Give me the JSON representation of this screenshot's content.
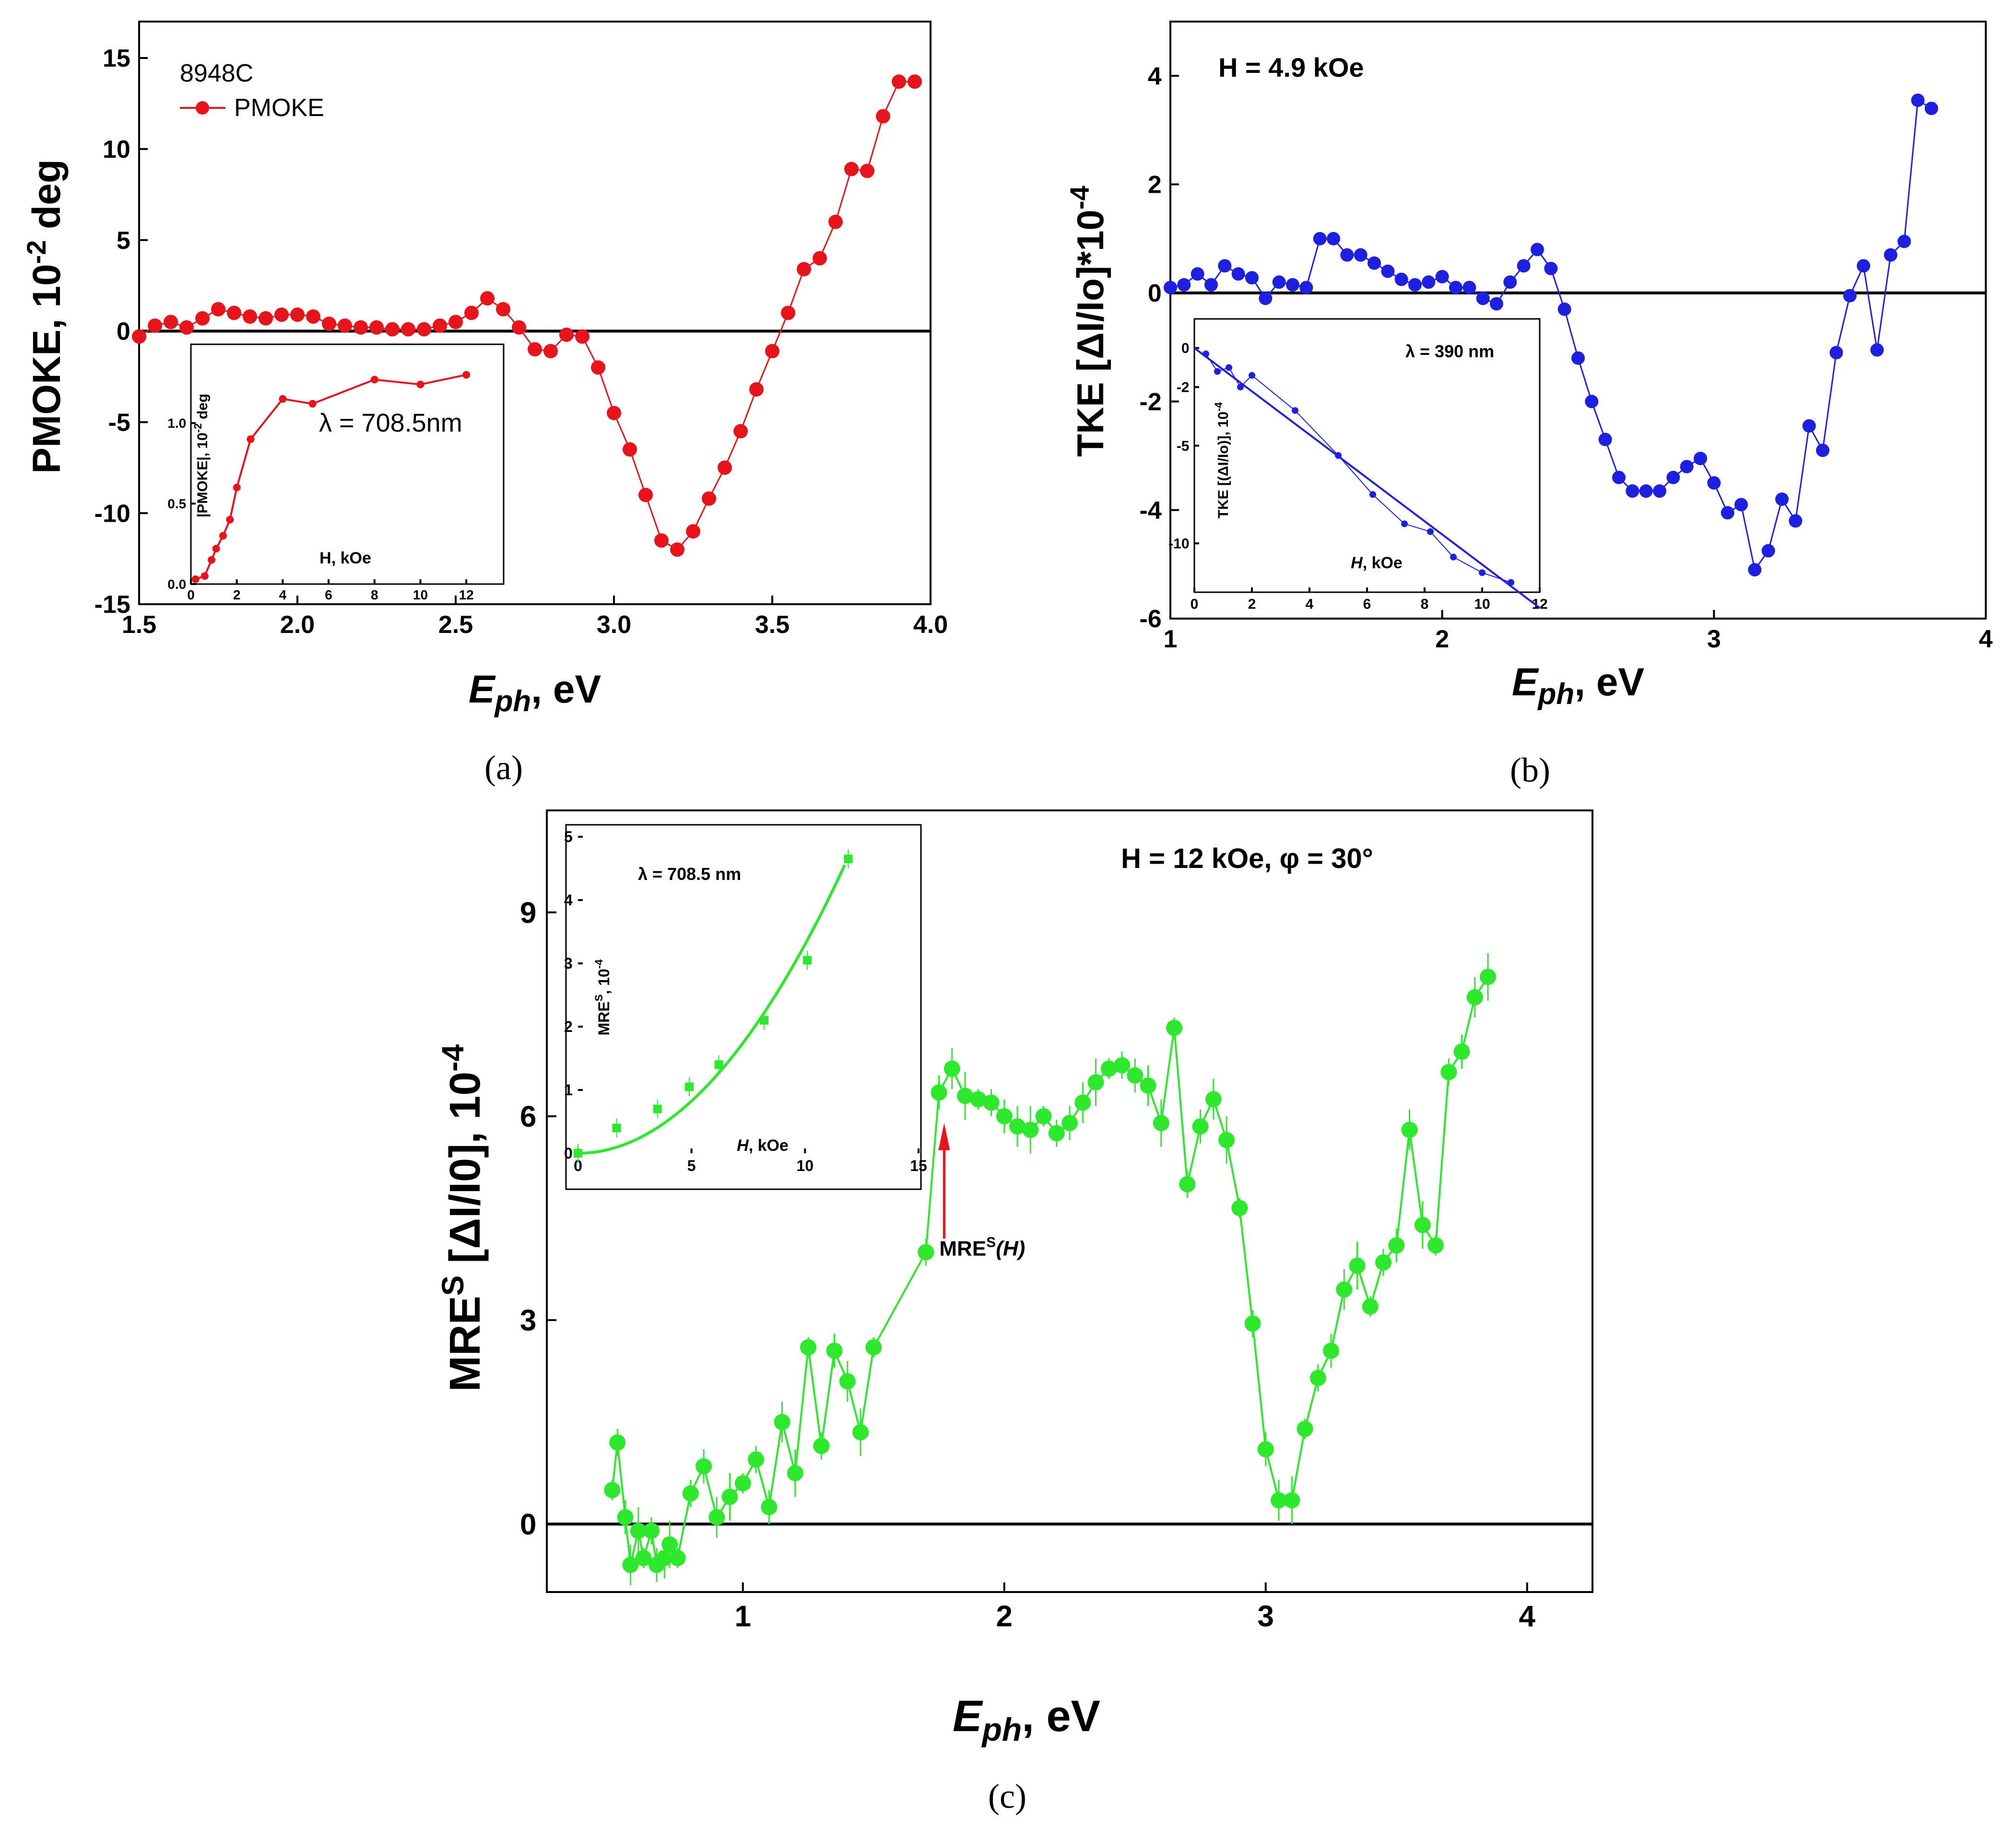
{
  "chart_data": [
    {
      "id": "a",
      "type": "scatter",
      "caption": "(a)",
      "xlabel_sym": "E",
      "xlabel_sub": "ph",
      "xlabel_unit": ", eV",
      "ylabel_main": "PMOKE, 10",
      "ylabel_sup": "-2",
      "ylabel_unit": " deg",
      "sample_label": "8948C",
      "legend": "PMOKE",
      "xlim": [
        1.5,
        4.0
      ],
      "ylim": [
        -15,
        17
      ],
      "xticks": [
        "1.5",
        "2.0",
        "2.5",
        "3.0",
        "3.5",
        "4.0"
      ],
      "yticks": [
        "-15",
        "-10",
        "-5",
        "0",
        "5",
        "10",
        "15"
      ],
      "color": "#e8141c",
      "series": [
        {
          "name": "PMOKE",
          "x": [
            1.5,
            1.55,
            1.6,
            1.65,
            1.7,
            1.75,
            1.8,
            1.85,
            1.9,
            1.95,
            2.0,
            2.05,
            2.1,
            2.15,
            2.2,
            2.25,
            2.3,
            2.35,
            2.4,
            2.45,
            2.5,
            2.55,
            2.6,
            2.65,
            2.7,
            2.75,
            2.8,
            2.85,
            2.9,
            2.95,
            3.0,
            3.05,
            3.1,
            3.15,
            3.2,
            3.25,
            3.3,
            3.35,
            3.4,
            3.45,
            3.5,
            3.55,
            3.6,
            3.65,
            3.7,
            3.75,
            3.8,
            3.85,
            3.9,
            3.95
          ],
          "y": [
            -0.3,
            0.3,
            0.5,
            0.2,
            0.7,
            1.2,
            1.0,
            0.8,
            0.7,
            0.9,
            0.9,
            0.8,
            0.4,
            0.3,
            0.2,
            0.2,
            0.1,
            0.1,
            0.1,
            0.3,
            0.5,
            1.0,
            1.8,
            1.2,
            0.2,
            -1.0,
            -1.1,
            -0.2,
            -0.3,
            -2.0,
            -4.5,
            -6.5,
            -9.0,
            -11.5,
            -12.0,
            -11.0,
            -9.2,
            -7.5,
            -5.5,
            -3.2,
            -1.1,
            1.0,
            3.4,
            4.0,
            6.0,
            8.9,
            8.8,
            11.8,
            13.7,
            13.7
          ]
        }
      ],
      "inset": {
        "type": "line",
        "xlabel": "H, kOe",
        "ylabel_main": "|PMOKE|, 10",
        "ylabel_sup": "-2",
        "ylabel_unit": " deg",
        "annotation": "λ = 708.5nm",
        "xlim": [
          0,
          13
        ],
        "ylim": [
          0,
          1.4
        ],
        "xticks": [
          "0",
          "2",
          "4",
          "6",
          "8",
          "10",
          "12"
        ],
        "yticks": [
          "0.0",
          "0.5",
          "1.0"
        ],
        "x": [
          0.2,
          0.6,
          0.9,
          1.1,
          1.4,
          1.7,
          2.0,
          2.6,
          4.0,
          5.3,
          8.0,
          10.0,
          12.0
        ],
        "y": [
          0.03,
          0.05,
          0.15,
          0.22,
          0.3,
          0.4,
          0.6,
          0.9,
          1.15,
          1.12,
          1.27,
          1.24,
          1.3
        ]
      }
    },
    {
      "id": "b",
      "type": "scatter",
      "caption": "(b)",
      "xlabel_sym": "E",
      "xlabel_sub": "ph",
      "xlabel_unit": ", eV",
      "ylabel_main": "TKE [ΔI/Io]*10",
      "ylabel_sup": "-4",
      "ylabel_unit": "",
      "annotation": "H = 4.9 kOe",
      "xlim": [
        1,
        4
      ],
      "ylim": [
        -6,
        5
      ],
      "xticks": [
        "1",
        "2",
        "3",
        "4"
      ],
      "yticks": [
        "-6",
        "-4",
        "-2",
        "0",
        "2",
        "4"
      ],
      "color": "#1f1fe0",
      "series": [
        {
          "name": "TKE",
          "x": [
            1.0,
            1.05,
            1.1,
            1.15,
            1.2,
            1.25,
            1.3,
            1.35,
            1.4,
            1.45,
            1.5,
            1.55,
            1.6,
            1.65,
            1.7,
            1.75,
            1.8,
            1.85,
            1.9,
            1.95,
            2.0,
            2.05,
            2.1,
            2.15,
            2.2,
            2.25,
            2.3,
            2.35,
            2.4,
            2.45,
            2.5,
            2.55,
            2.6,
            2.65,
            2.7,
            2.75,
            2.8,
            2.85,
            2.9,
            2.95,
            3.0,
            3.05,
            3.1,
            3.15,
            3.2,
            3.25,
            3.3,
            3.35,
            3.4,
            3.45,
            3.5,
            3.55,
            3.6,
            3.65,
            3.7,
            3.75,
            3.8
          ],
          "y": [
            0.1,
            0.15,
            0.35,
            0.15,
            0.5,
            0.35,
            0.28,
            -0.1,
            0.2,
            0.15,
            0.1,
            1.0,
            1.0,
            0.7,
            0.7,
            0.55,
            0.4,
            0.25,
            0.15,
            0.2,
            0.3,
            0.1,
            0.1,
            -0.1,
            -0.2,
            0.2,
            0.5,
            0.8,
            0.45,
            -0.3,
            -1.2,
            -2.0,
            -2.7,
            -3.4,
            -3.65,
            -3.65,
            -3.65,
            -3.4,
            -3.2,
            -3.05,
            -3.5,
            -4.05,
            -3.9,
            -5.1,
            -4.75,
            -3.8,
            -4.2,
            -2.45,
            -2.9,
            -1.1,
            -0.05,
            0.5,
            -1.05,
            0.7,
            0.95,
            3.55,
            3.4
          ]
        }
      ],
      "inset": {
        "type": "line",
        "xlabel": "H, kOe",
        "ylabel_main": "TKE [(ΔI/Io)], 10",
        "ylabel_sup": "-4",
        "ylabel_unit": "",
        "annotation": "λ = 390 nm",
        "xlim": [
          0,
          12
        ],
        "ylim": [
          -12.5,
          1
        ],
        "xticks": [
          "0",
          "2",
          "4",
          "6",
          "8",
          "10",
          "12"
        ],
        "yticks": [
          "-10",
          "-5",
          "-2",
          "0"
        ],
        "x": [
          0.4,
          0.8,
          1.2,
          1.6,
          2.0,
          3.5,
          5.0,
          6.2,
          7.3,
          8.2,
          9.0,
          10.0,
          11.0
        ],
        "y": [
          -0.3,
          -1.2,
          -1.0,
          -2.0,
          -1.4,
          -3.2,
          -5.5,
          -7.5,
          -9.0,
          -9.4,
          -10.7,
          -11.5,
          -12.0
        ],
        "fit": {
          "x": [
            0,
            12
          ],
          "y": [
            0,
            -13.3
          ]
        }
      }
    },
    {
      "id": "c",
      "type": "scatter",
      "caption": "(c)",
      "xlabel_sym": "E",
      "xlabel_sub": "ph",
      "xlabel_unit": ", eV",
      "ylabel_main": "MRE",
      "ylabel_sup": "S",
      "ylabel_unit": " [ΔI/I0], 10",
      "ylabel_sup2": "-4",
      "annotation": "H = 12 kOe,  φ = 30°",
      "arrow_label": "MRE",
      "arrow_label_sup": "S",
      "arrow_label_end": "(H)",
      "arrow_x": 1.77,
      "xlim": [
        0.25,
        4.25
      ],
      "ylim": [
        -1,
        10.5
      ],
      "xticks": [
        "1",
        "2",
        "3",
        "4"
      ],
      "yticks": [
        "0",
        "3",
        "6",
        "9"
      ],
      "color": "#2ee82e",
      "series": [
        {
          "name": "MRES",
          "x": [
            0.5,
            0.52,
            0.55,
            0.57,
            0.6,
            0.62,
            0.65,
            0.67,
            0.7,
            0.72,
            0.75,
            0.8,
            0.85,
            0.9,
            0.95,
            1.0,
            1.05,
            1.1,
            1.15,
            1.2,
            1.25,
            1.3,
            1.35,
            1.4,
            1.45,
            1.5,
            1.7,
            1.75,
            1.8,
            1.85,
            1.9,
            1.95,
            2.0,
            2.05,
            2.1,
            2.15,
            2.2,
            2.25,
            2.3,
            2.35,
            2.4,
            2.45,
            2.5,
            2.55,
            2.6,
            2.65,
            2.7,
            2.75,
            2.8,
            2.85,
            2.9,
            2.95,
            3.0,
            3.05,
            3.1,
            3.15,
            3.2,
            3.25,
            3.3,
            3.35,
            3.4,
            3.45,
            3.5,
            3.55,
            3.6,
            3.65,
            3.7,
            3.75,
            3.8,
            3.85
          ],
          "y": [
            0.5,
            1.2,
            0.1,
            -0.6,
            -0.1,
            -0.5,
            -0.1,
            -0.6,
            -0.5,
            -0.3,
            -0.5,
            0.45,
            0.85,
            0.1,
            0.4,
            0.6,
            0.95,
            0.25,
            1.5,
            0.75,
            2.6,
            1.15,
            2.55,
            2.1,
            1.35,
            2.6,
            4.0,
            6.35,
            6.7,
            6.3,
            6.25,
            6.2,
            6.0,
            5.85,
            5.8,
            6.0,
            5.75,
            5.9,
            6.2,
            6.5,
            6.7,
            6.75,
            6.6,
            6.45,
            5.9,
            7.3,
            5.0,
            5.85,
            6.25,
            5.65,
            4.65,
            2.95,
            1.1,
            0.35,
            0.35,
            1.4,
            2.15,
            2.55,
            3.45,
            3.8,
            3.2,
            3.85,
            4.1,
            5.8,
            4.4,
            4.1,
            6.65,
            6.95,
            7.75,
            8.05
          ]
        }
      ],
      "inset": {
        "type": "scatter",
        "xlabel": "H, kOe",
        "ylabel_main": "MRE",
        "ylabel_sup": "S",
        "ylabel_unit": ", 10",
        "ylabel_sup2": "-4",
        "annotation": "λ = 708.5 nm",
        "xlim": [
          0,
          15
        ],
        "ylim": [
          0,
          5
        ],
        "xticks": [
          "0",
          "5",
          "10",
          "15"
        ],
        "yticks": [
          "0",
          "1",
          "2",
          "3",
          "4",
          "5"
        ],
        "x": [
          0,
          1.7,
          3.5,
          4.9,
          6.2,
          8.2,
          10.1,
          11.9
        ],
        "y": [
          0,
          0.4,
          0.7,
          1.05,
          1.4,
          2.1,
          3.05,
          4.65
        ],
        "fit": {
          "type": "quadratic",
          "coef": 0.033
        }
      }
    }
  ]
}
